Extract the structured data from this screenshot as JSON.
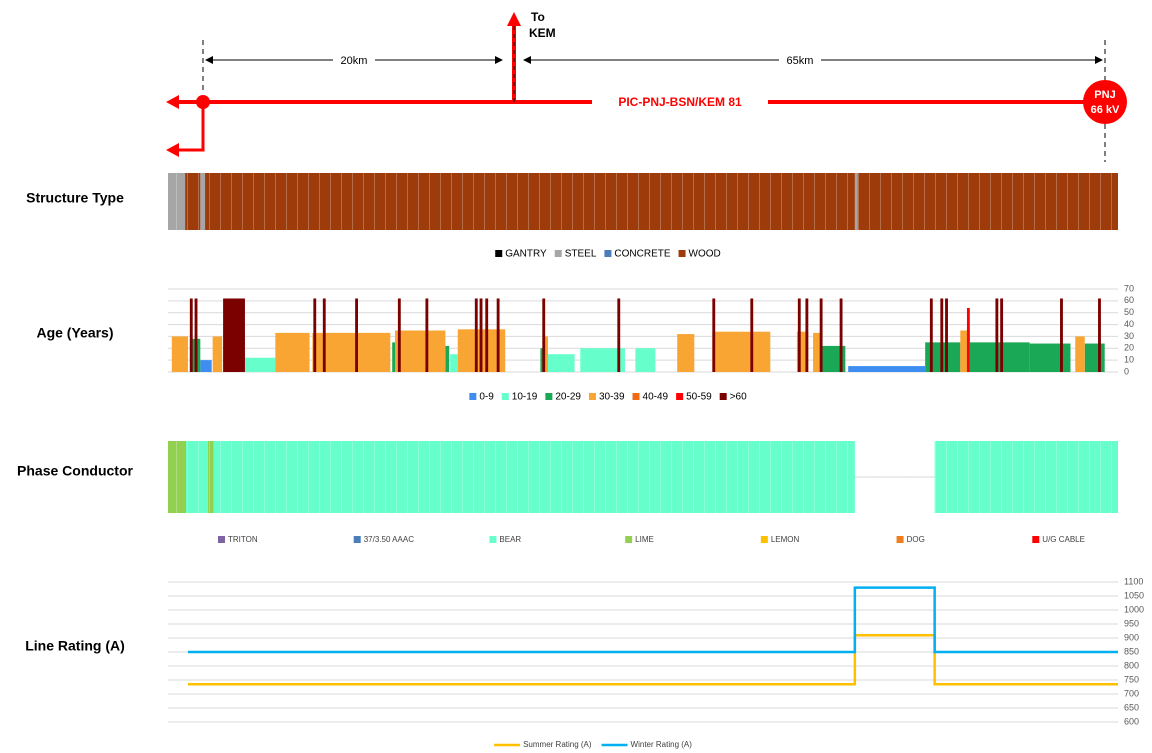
{
  "diagram": {
    "to_label": [
      "To",
      "KEM"
    ],
    "left_distance": "20km",
    "right_distance": "65km",
    "line_name": "PIC-PNJ-BSN/KEM 81",
    "substation": [
      "PNJ",
      "66 kV"
    ]
  },
  "chart_data": [
    {
      "type": "strip",
      "title": "Structure Type",
      "xlim": [
        0,
        100
      ],
      "series": [
        {
          "name": "GANTRY",
          "color": "#000000",
          "spans": []
        },
        {
          "name": "STEEL",
          "color": "#a6a6a6",
          "spans": [
            [
              0,
              1.8
            ],
            [
              3.4,
              3.9
            ],
            [
              72.3,
              72.6
            ]
          ]
        },
        {
          "name": "CONCRETE",
          "color": "#4a7ebb",
          "spans": []
        },
        {
          "name": "WOOD",
          "color": "#9e3b0b",
          "spans": [
            [
              1.8,
              3.4
            ],
            [
              3.9,
              72.3
            ],
            [
              72.6,
              100
            ]
          ]
        }
      ]
    },
    {
      "type": "bar",
      "title": "Age (Years)",
      "xlim": [
        0,
        100
      ],
      "ylim": [
        0,
        70
      ],
      "yticks": [
        0,
        10,
        20,
        30,
        40,
        50,
        60,
        70
      ],
      "grid": true,
      "series": [
        {
          "name": "0-9",
          "color": "#3d8ef0",
          "spans": [
            [
              3.4,
              4.6
            ],
            [
              71.6,
              79.7
            ]
          ],
          "values": [
            10,
            5
          ]
        },
        {
          "name": "10-19",
          "color": "#66ffcc",
          "spans": [
            [
              8.1,
              11.3
            ],
            [
              29.7,
              30.5
            ],
            [
              40,
              42.8
            ],
            [
              43.4,
              48.1
            ],
            [
              49.2,
              51.3
            ]
          ],
          "values": [
            12,
            15,
            15,
            20,
            20
          ]
        },
        {
          "name": "20-29",
          "color": "#1aa856",
          "spans": [
            [
              2.3,
              3.4
            ],
            [
              23.6,
              24
            ],
            [
              29.2,
              29.6
            ],
            [
              39.2,
              39.7
            ],
            [
              68.8,
              71.3
            ],
            [
              79.7,
              83.4
            ],
            [
              84.4,
              90.7
            ],
            [
              90.7,
              95
            ],
            [
              96.5,
              98.6
            ]
          ],
          "values": [
            28,
            25,
            22,
            20,
            22,
            25,
            25,
            24,
            24
          ]
        },
        {
          "name": "30-39",
          "color": "#f9a533",
          "spans": [
            [
              0.4,
              2.1
            ],
            [
              4.7,
              5.7
            ],
            [
              11.3,
              14.9
            ],
            [
              15.2,
              23.4
            ],
            [
              23.9,
              29.2
            ],
            [
              30.5,
              35.5
            ],
            [
              39.5,
              40
            ],
            [
              53.6,
              55.4
            ],
            [
              57.3,
              63.4
            ],
            [
              66.2,
              67.4
            ],
            [
              67.9,
              68.8
            ],
            [
              83.4,
              84.4
            ],
            [
              95.5,
              96.5
            ]
          ],
          "values": [
            30,
            30,
            33,
            33,
            35,
            36,
            30,
            32,
            34,
            34,
            33,
            35,
            30
          ]
        },
        {
          "name": "40-49",
          "color": "#f06a12",
          "spans": [],
          "values": []
        },
        {
          "name": "50-59",
          "color": "#ff0000",
          "spans": [
            [
              84.1,
              84.4
            ]
          ],
          "values": [
            54
          ]
        },
        {
          "name": ">60",
          "color": "#7b0000",
          "spans": [
            [
              5.8,
              8.1
            ],
            [
              2.3,
              2.6
            ],
            [
              2.8,
              3.1
            ],
            [
              15.3,
              15.6
            ],
            [
              16.3,
              16.6
            ],
            [
              19.7,
              20
            ],
            [
              24.2,
              24.5
            ],
            [
              27.1,
              27.4
            ],
            [
              32.3,
              32.6
            ],
            [
              32.8,
              33.1
            ],
            [
              33.4,
              33.7
            ],
            [
              34.6,
              34.9
            ],
            [
              39.4,
              39.7
            ],
            [
              47.3,
              47.6
            ],
            [
              57.3,
              57.6
            ],
            [
              61.3,
              61.6
            ],
            [
              66.3,
              66.6
            ],
            [
              67.1,
              67.4
            ],
            [
              68.6,
              68.9
            ],
            [
              70.7,
              71
            ],
            [
              80.2,
              80.5
            ],
            [
              81.3,
              81.6
            ],
            [
              81.8,
              82.1
            ],
            [
              87.1,
              87.4
            ],
            [
              87.6,
              87.9
            ],
            [
              93.9,
              94.2
            ],
            [
              97.9,
              98.2
            ]
          ],
          "values": [
            62,
            62,
            62,
            62,
            62,
            62,
            62,
            62,
            62,
            62,
            62,
            62,
            62,
            62,
            62,
            62,
            62,
            62,
            62,
            62,
            62,
            62,
            62,
            62,
            62,
            62,
            62
          ]
        }
      ]
    },
    {
      "type": "strip",
      "title": "Phase Conductor",
      "xlim": [
        0,
        100
      ],
      "series": [
        {
          "name": "TRITON",
          "color": "#8064a2",
          "spans": []
        },
        {
          "name": "37/3.50 AAAC",
          "color": "#4a7ebb",
          "spans": []
        },
        {
          "name": "BEAR",
          "color": "#66ffcc",
          "spans": [
            [
              1.9,
              4.2
            ],
            [
              4.8,
              72.3
            ],
            [
              80.7,
              100
            ]
          ]
        },
        {
          "name": "LIME",
          "color": "#92d050",
          "spans": [
            [
              0,
              1.9
            ],
            [
              4.2,
              4.8
            ]
          ]
        },
        {
          "name": "LEMON",
          "color": "#ffc000",
          "spans": []
        },
        {
          "name": "DOG",
          "color": "#f07d1e",
          "spans": []
        },
        {
          "name": "U/G CABLE",
          "color": "#ff0000",
          "spans": []
        }
      ]
    },
    {
      "type": "line",
      "title": "Line Rating (A)",
      "xlim": [
        0,
        100
      ],
      "ylim": [
        600,
        1100
      ],
      "yticks": [
        600,
        650,
        700,
        750,
        800,
        850,
        900,
        950,
        1000,
        1050,
        1100
      ],
      "grid": true,
      "x": [
        2.1,
        72.3,
        72.3,
        80.7,
        80.7,
        100
      ],
      "series": [
        {
          "name": "Summer Rating (A)",
          "color": "#ffc000",
          "values": [
            735,
            735,
            910,
            910,
            735,
            735
          ]
        },
        {
          "name": "Winter Rating (A)",
          "color": "#00b0f0",
          "values": [
            850,
            850,
            1080,
            1080,
            850,
            850
          ]
        }
      ]
    }
  ]
}
